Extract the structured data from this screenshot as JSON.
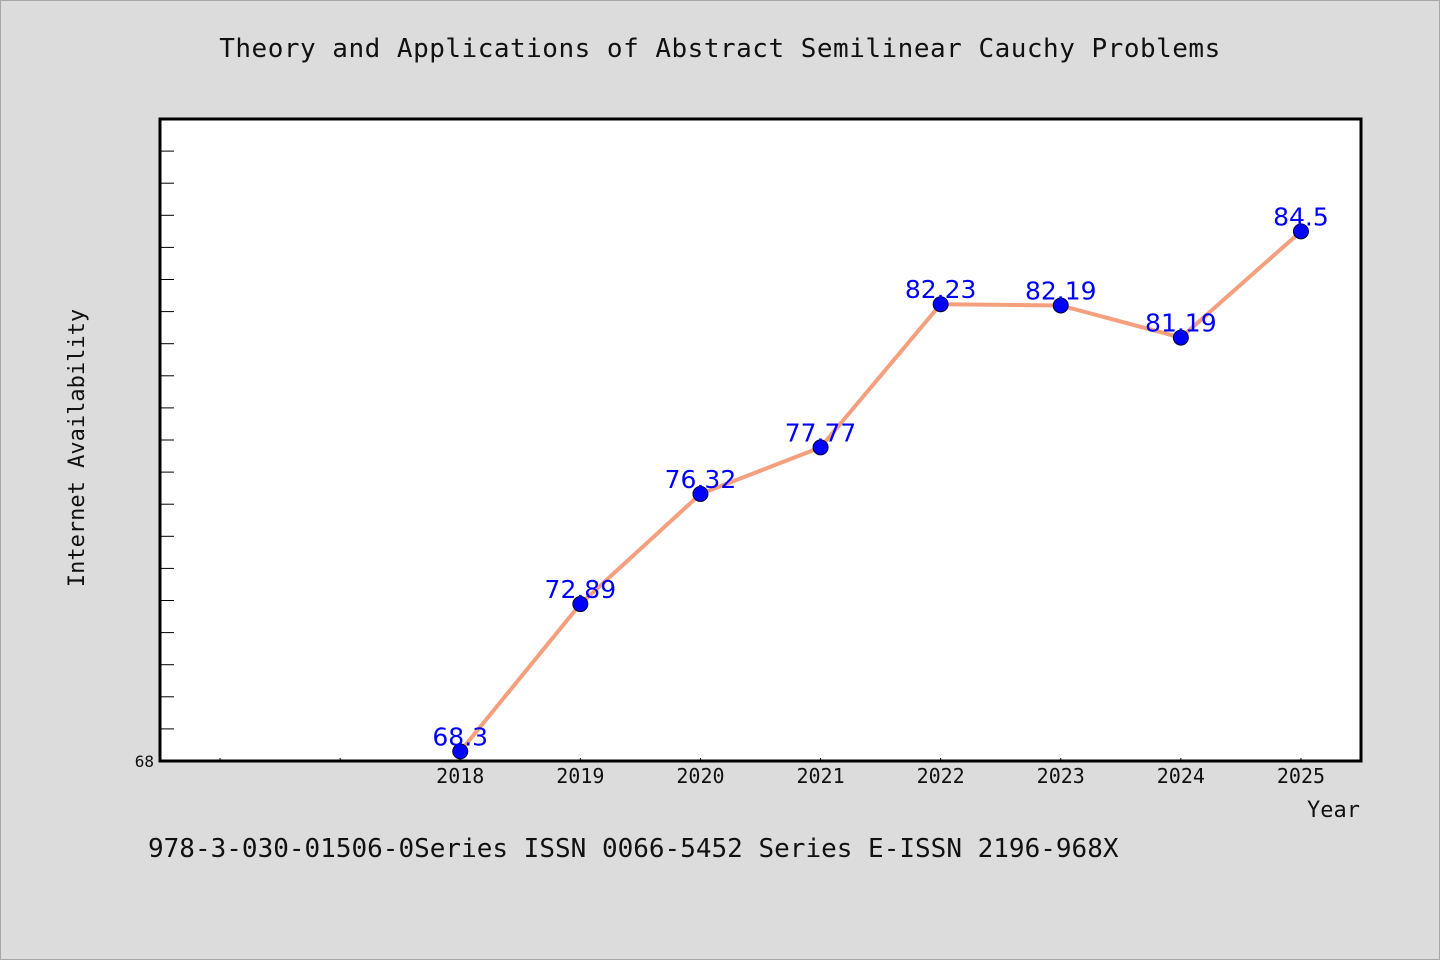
{
  "colors": {
    "background": "#dcdcdc",
    "plot_background": "#ffffff",
    "line": "#f4a07e",
    "marker": "#0000ff",
    "data_label": "#0000ff",
    "axis": "#000000"
  },
  "chart_data": {
    "type": "line",
    "title": "Theory and Applications of Abstract Semilinear Cauchy Problems",
    "xlabel": "Year",
    "ylabel": "Internet Availability",
    "x": [
      "2018",
      "2019",
      "2020",
      "2021",
      "2022",
      "2023",
      "2024",
      "2025"
    ],
    "xlim_categories": [
      "",
      "",
      "2018",
      "2019",
      "2020",
      "2021",
      "2022",
      "2023",
      "2024",
      "2025"
    ],
    "series": [
      {
        "values": [
          68.3,
          72.89,
          76.32,
          77.77,
          82.23,
          82.19,
          81.19,
          84.5
        ],
        "labels": [
          "68.3",
          "72.89",
          "76.32",
          "77.77",
          "82.23",
          "82.19",
          "81.19",
          "84.5"
        ]
      }
    ],
    "y_tick_labels": [
      "68"
    ],
    "ylim": [
      68,
      88
    ],
    "y_minor_tick_step": 1,
    "grid": false,
    "legend": "none"
  },
  "footer": {
    "text": "978-3-030-01506-0Series ISSN 0066-5452 Series E-ISSN 2196-968X"
  }
}
